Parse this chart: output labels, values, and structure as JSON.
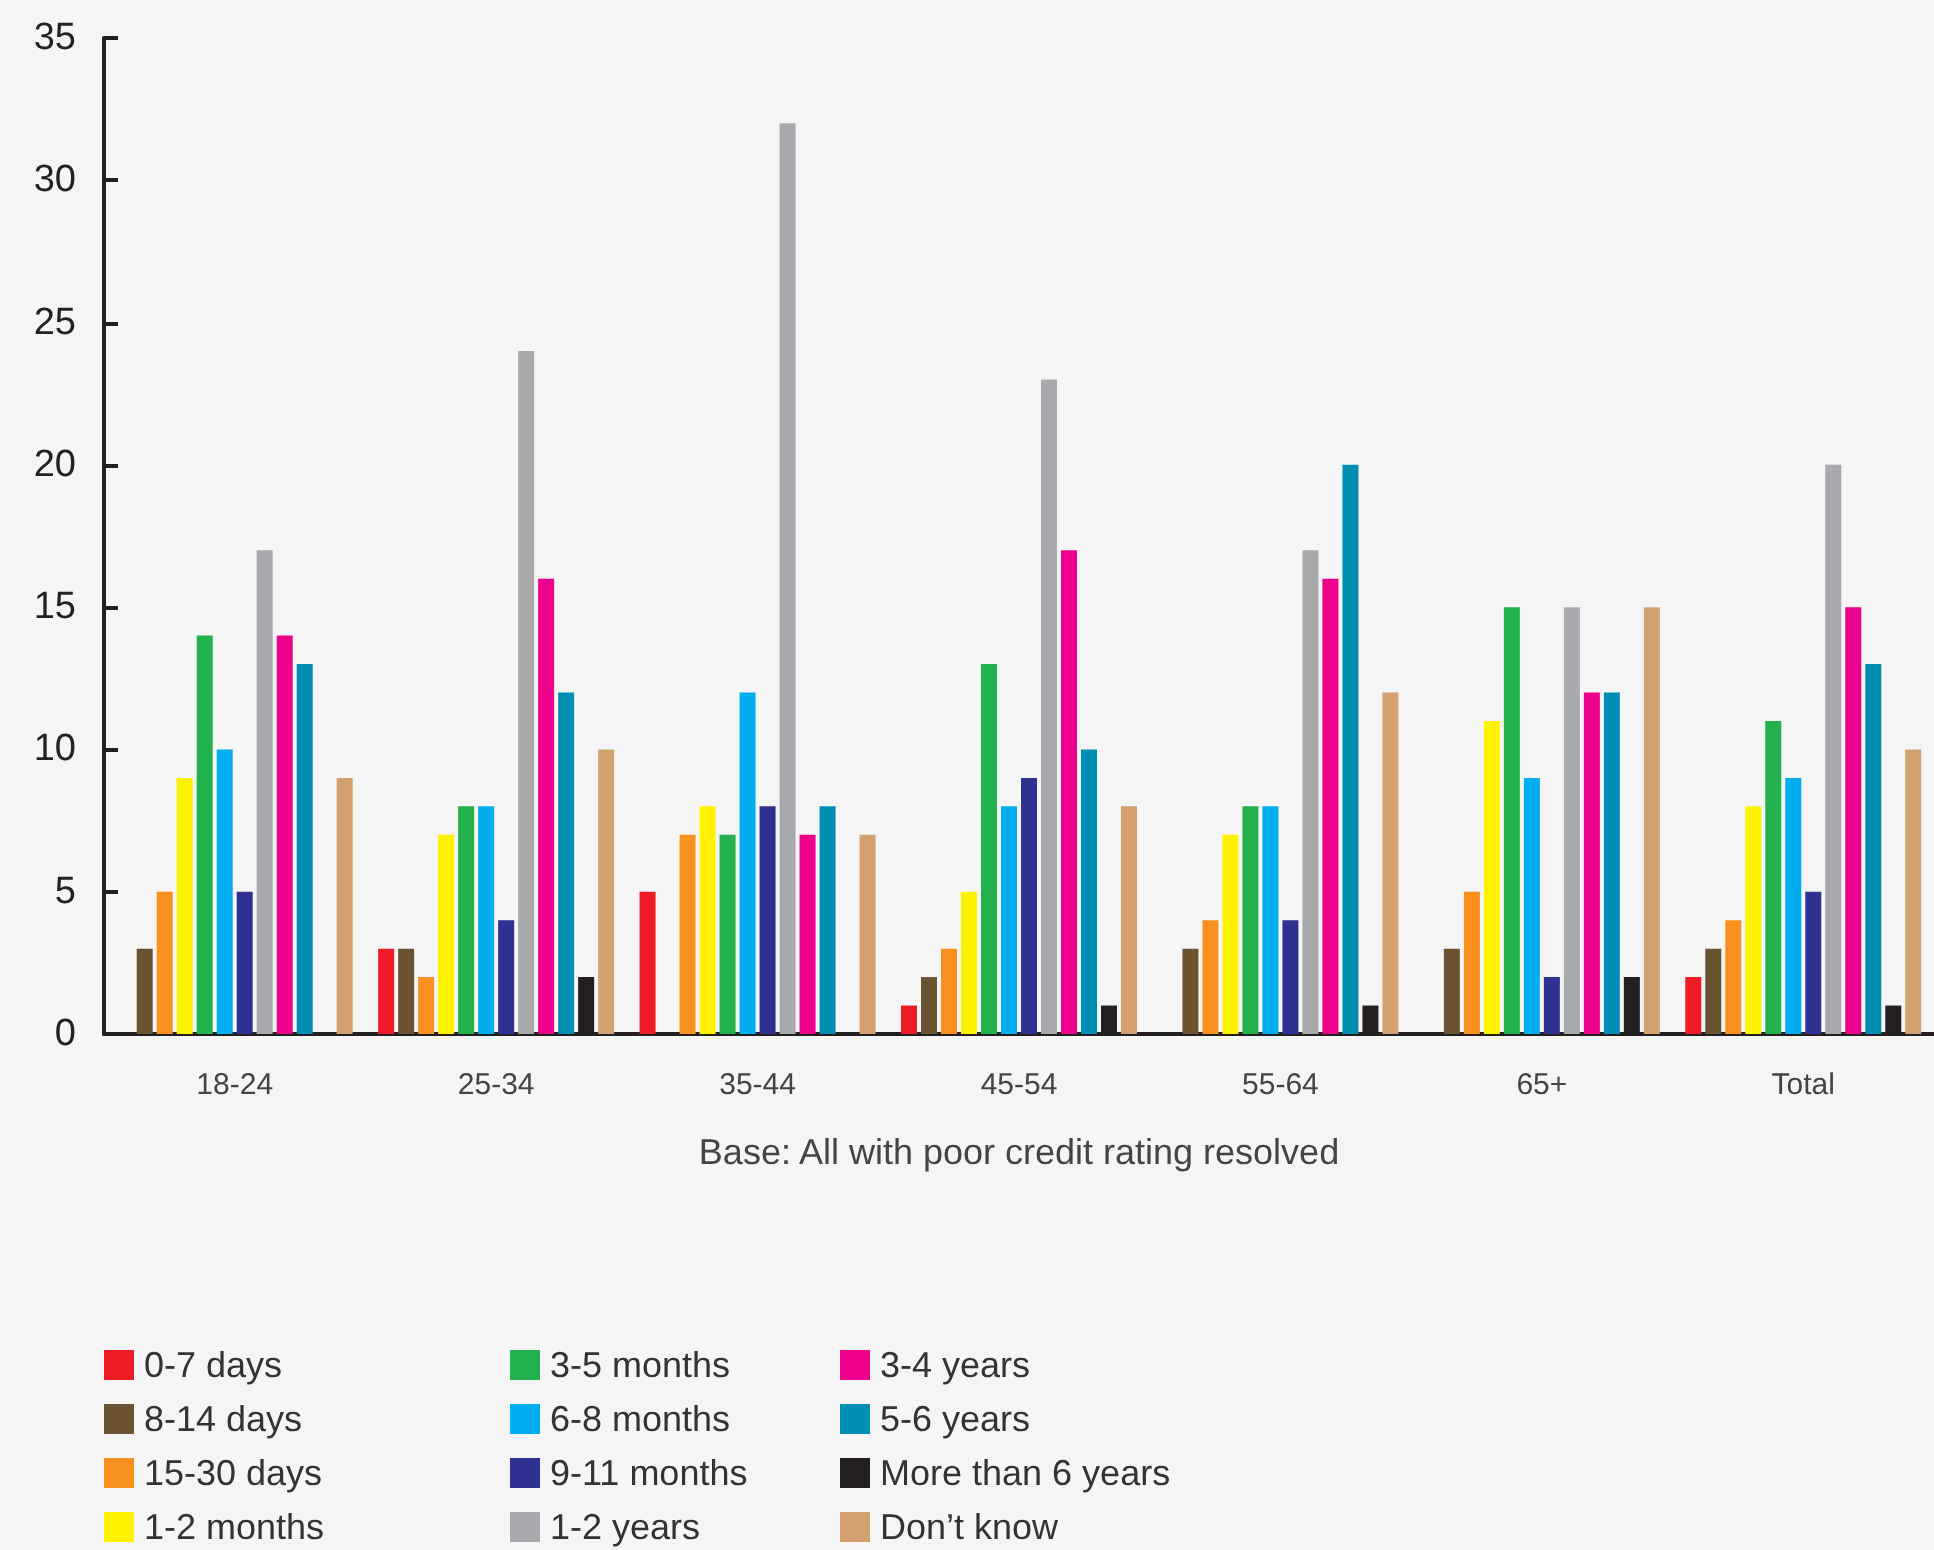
{
  "chart_data": {
    "type": "bar",
    "xlabel": "Base: All with poor credit rating resolved",
    "categories": [
      "18-24",
      "25-34",
      "35-44",
      "45-54",
      "55-64",
      "65+",
      "Total"
    ],
    "ylim": [
      0,
      35
    ],
    "yticks": [
      0,
      5,
      10,
      15,
      20,
      25,
      30,
      35
    ],
    "grid": false,
    "legend": "bottom left",
    "series": [
      {
        "name": "0-7 days",
        "color": "#ed1c24",
        "values": [
          0,
          3,
          5,
          1,
          0,
          0,
          2
        ]
      },
      {
        "name": "8-14 days",
        "color": "#6b5330",
        "values": [
          3,
          3,
          0,
          2,
          3,
          3,
          3
        ]
      },
      {
        "name": "15-30 days",
        "color": "#f7901e",
        "values": [
          5,
          2,
          7,
          3,
          4,
          5,
          4
        ]
      },
      {
        "name": "1-2 months",
        "color": "#fff200",
        "values": [
          9,
          7,
          8,
          5,
          7,
          11,
          8
        ]
      },
      {
        "name": "3-5 months",
        "color": "#22b14c",
        "values": [
          14,
          8,
          7,
          13,
          8,
          15,
          11
        ]
      },
      {
        "name": "6-8 months",
        "color": "#00aeef",
        "values": [
          10,
          8,
          12,
          8,
          8,
          9,
          9
        ]
      },
      {
        "name": "9-11 months",
        "color": "#2e3192",
        "values": [
          5,
          4,
          8,
          9,
          4,
          2,
          5
        ]
      },
      {
        "name": "1-2 years",
        "color": "#a7a9ac",
        "values": [
          17,
          24,
          32,
          23,
          17,
          15,
          20
        ]
      },
      {
        "name": "3-4 years",
        "color": "#ec008c",
        "values": [
          14,
          16,
          7,
          17,
          16,
          12,
          15
        ]
      },
      {
        "name": "5-6 years",
        "color": "#008fb2",
        "values": [
          13,
          12,
          8,
          10,
          20,
          12,
          13
        ]
      },
      {
        "name": "More than 6 years",
        "color": "#231f20",
        "values": [
          0,
          2,
          0,
          1,
          1,
          2,
          1
        ]
      },
      {
        "name": "Don’t know",
        "color": "#d4a070",
        "values": [
          9,
          10,
          7,
          8,
          12,
          15,
          10
        ]
      }
    ]
  }
}
